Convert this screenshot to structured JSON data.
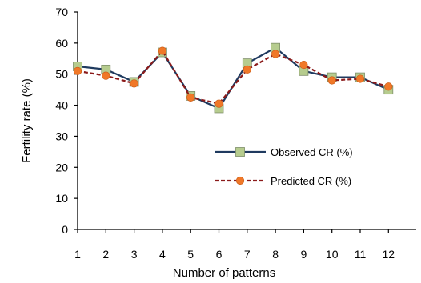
{
  "chart_data": {
    "type": "line",
    "xlabel": "Number of patterns",
    "ylabel": "Fertility rate (%)",
    "ylim": [
      0,
      70
    ],
    "y_ticks": [
      0,
      10,
      20,
      30,
      40,
      50,
      60,
      70
    ],
    "categories": [
      "1",
      "2",
      "3",
      "4",
      "5",
      "6",
      "7",
      "8",
      "9",
      "10",
      "11",
      "12"
    ],
    "grid": false,
    "legend_position": "lower-right",
    "series": [
      {
        "name": "Observed CR (%)",
        "values": [
          52.5,
          51.5,
          47.5,
          57.0,
          43.0,
          39.0,
          53.5,
          58.5,
          51.0,
          49.0,
          49.0,
          45.0
        ],
        "line_color": "#1f3a5f",
        "marker": "square",
        "marker_color": "#b6cc8e"
      },
      {
        "name": "Predicted CR (%)",
        "values": [
          51.0,
          49.5,
          47.0,
          57.5,
          42.5,
          40.5,
          51.5,
          56.5,
          53.0,
          48.0,
          48.5,
          46.0
        ],
        "line_color": "#8b1a1a",
        "line_style": "dashed",
        "marker": "circle",
        "marker_color": "#f07828"
      }
    ]
  }
}
